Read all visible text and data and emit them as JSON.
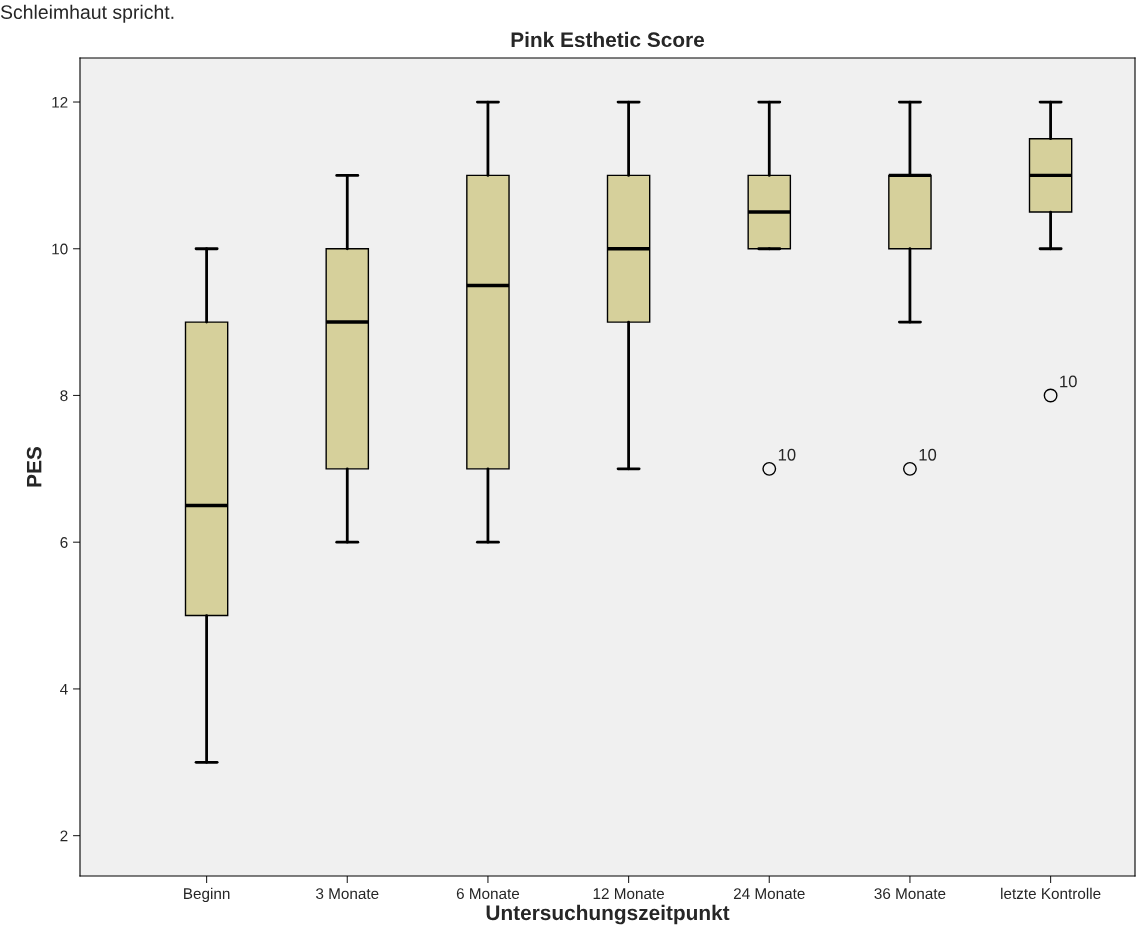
{
  "chart_data": {
    "type": "box",
    "title": "Pink Esthetic Score",
    "xlabel": "Untersuchungszeitpunkt",
    "ylabel": "PES",
    "categories": [
      "Beginn",
      "3 Monate",
      "6 Monate",
      "12 Monate",
      "24 Monate",
      "36 Monate",
      "letzte Kontrolle"
    ],
    "boxes": [
      {
        "low": 3,
        "q1": 5,
        "median": 6.5,
        "q3": 9,
        "high": 10
      },
      {
        "low": 6,
        "q1": 7,
        "median": 9,
        "q3": 10,
        "high": 11
      },
      {
        "low": 6,
        "q1": 7,
        "median": 9.5,
        "q3": 11,
        "high": 12
      },
      {
        "low": 7,
        "q1": 9,
        "median": 10,
        "q3": 11,
        "high": 12
      },
      {
        "low": 10,
        "q1": 10,
        "median": 10.5,
        "q3": 11,
        "high": 12,
        "outliers": [
          7
        ]
      },
      {
        "low": 9,
        "q1": 10,
        "median": 11,
        "q3": 11,
        "high": 12,
        "outliers": [
          7
        ]
      },
      {
        "low": 10,
        "q1": 10.5,
        "median": 11,
        "q3": 11.5,
        "high": 12,
        "outliers": [
          8
        ]
      }
    ],
    "color": "#d6d09b",
    "ylim": [
      1.45,
      12.6
    ],
    "yticks": [
      2,
      4,
      6,
      8,
      10,
      12
    ],
    "grid": false,
    "marker": "circle",
    "annotations": [
      "Schleimhaut spricht.",
      "10",
      "10",
      "10"
    ]
  }
}
